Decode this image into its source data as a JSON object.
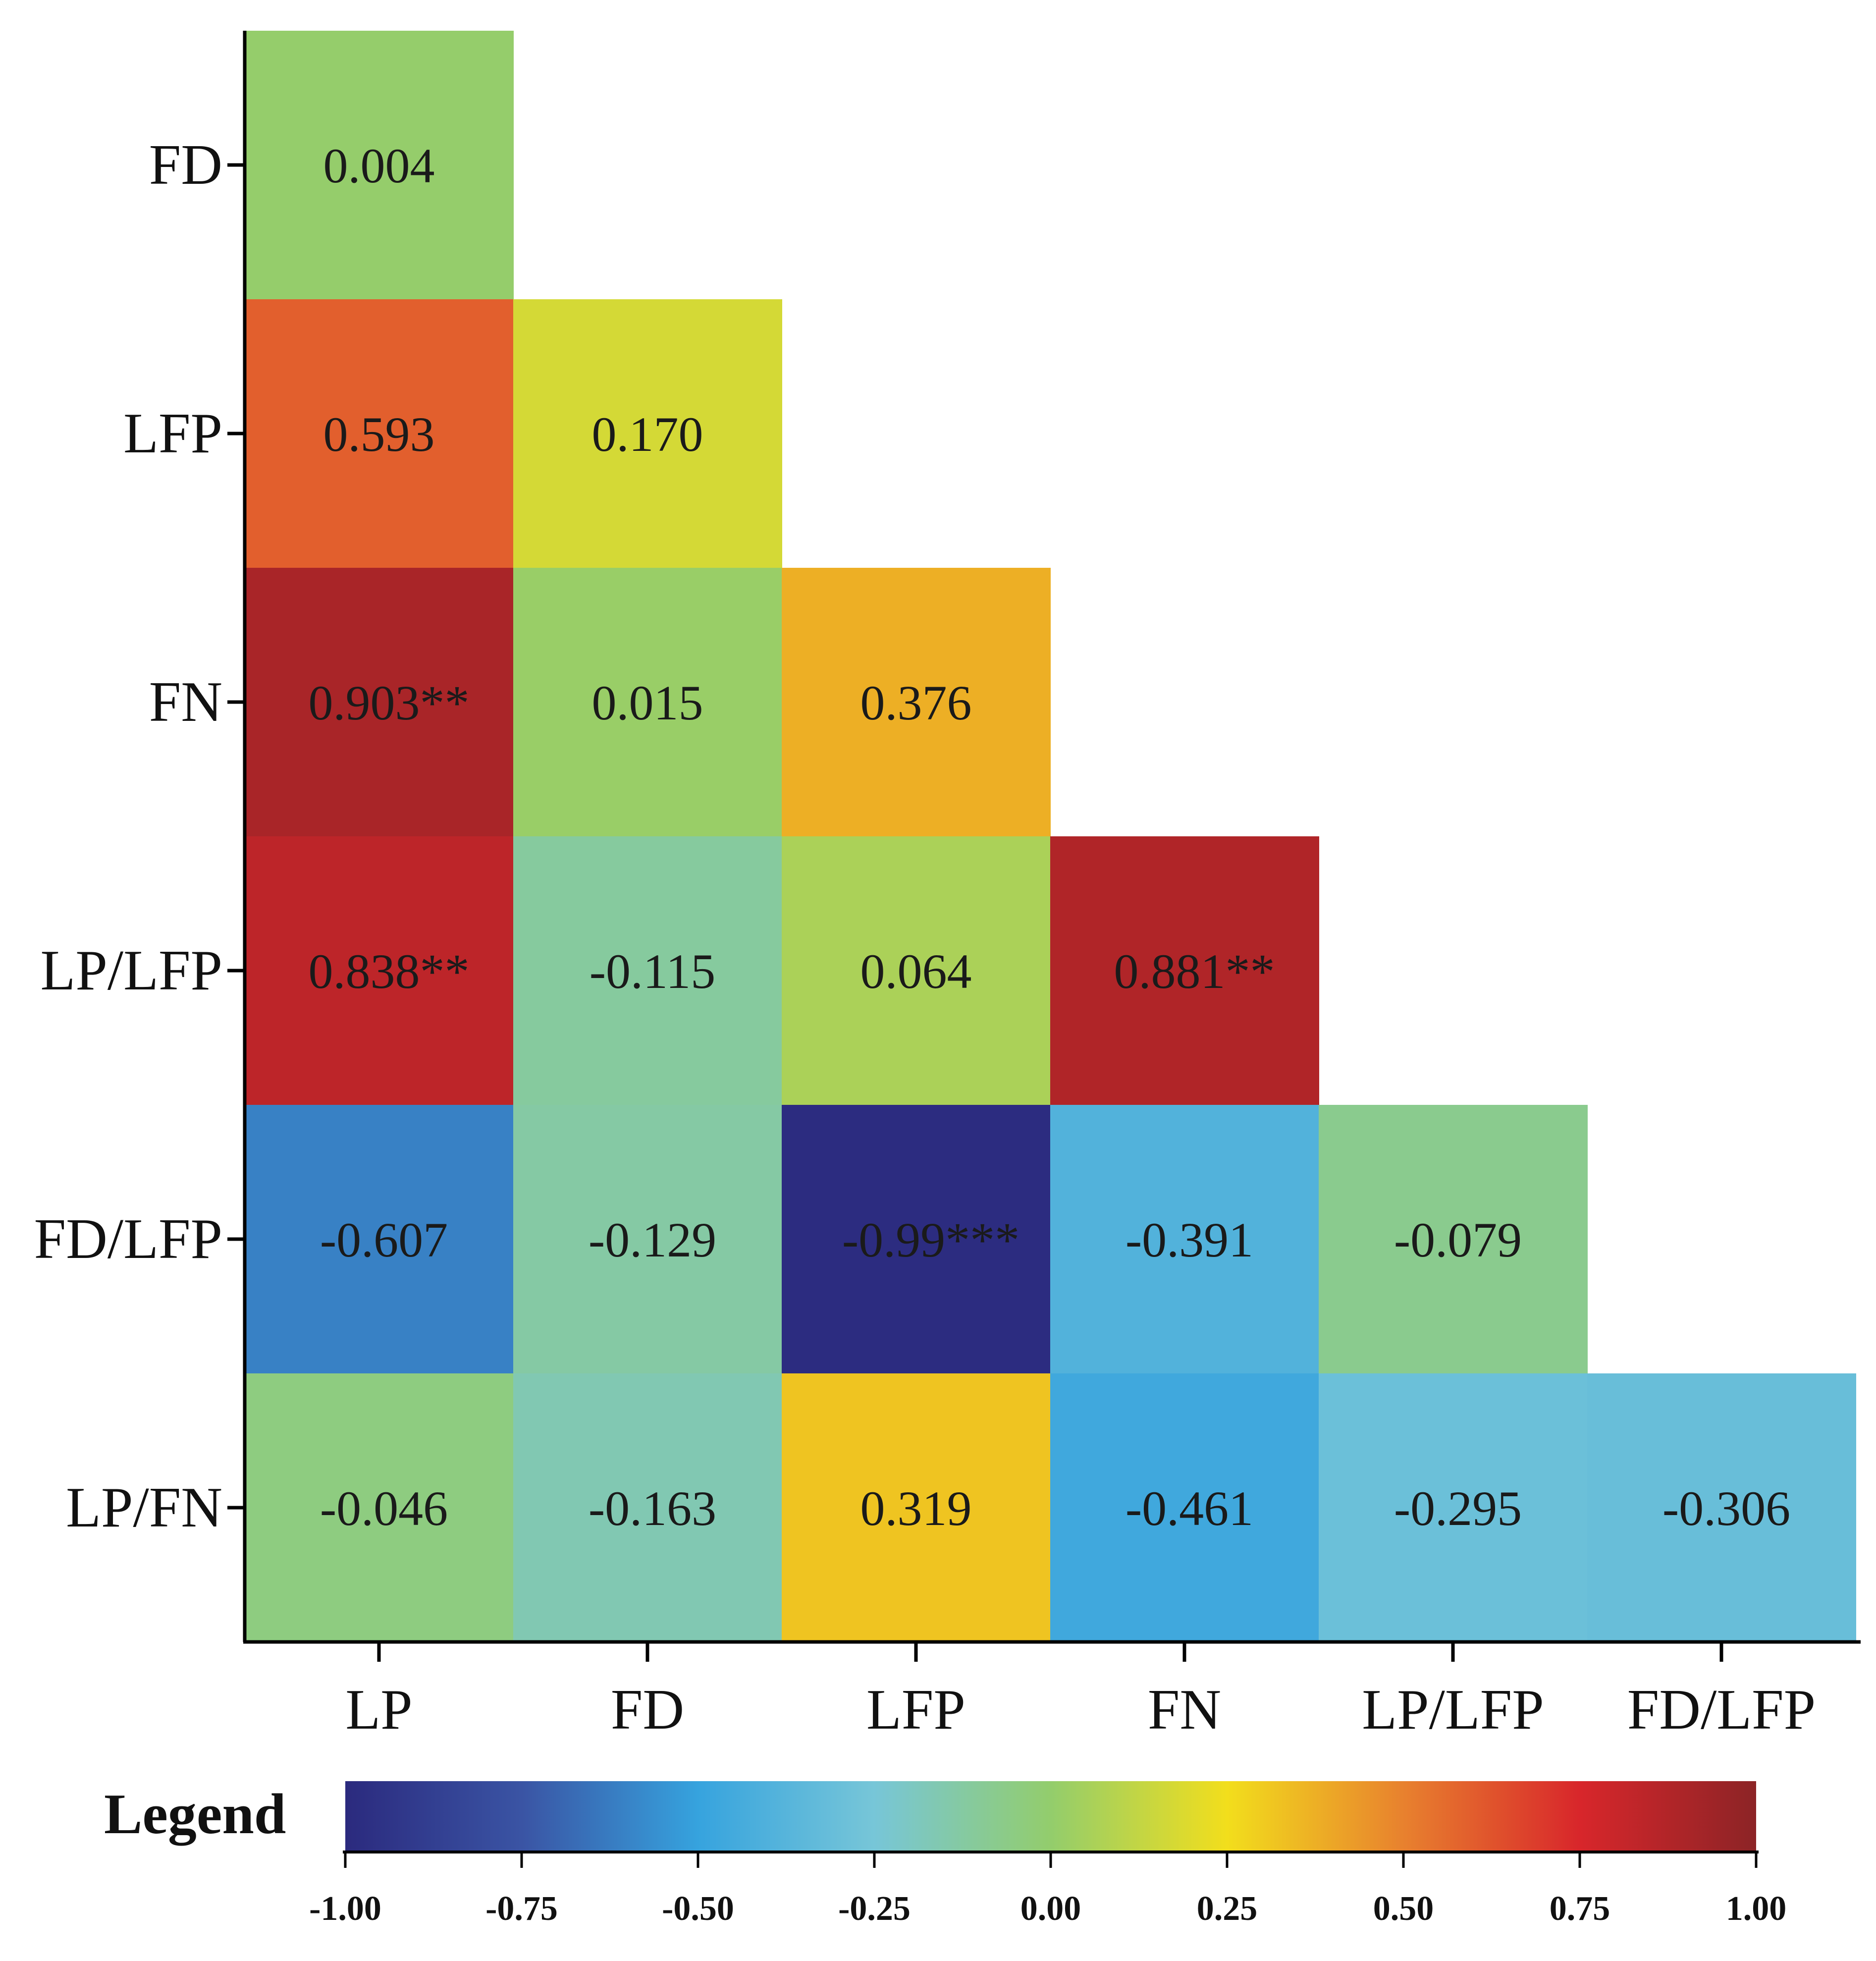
{
  "chart_data": {
    "type": "heatmap",
    "variables": [
      "LP",
      "FD",
      "LFP",
      "FN",
      "LP/LFP",
      "FD/LFP",
      "LP/FN"
    ],
    "x_labels": [
      "LP",
      "FD",
      "LFP",
      "FN",
      "LP/LFP",
      "FD/LFP"
    ],
    "y_labels": [
      "FD",
      "LFP",
      "FN",
      "LP/LFP",
      "FD/LFP",
      "LP/FN"
    ],
    "layout": "lower-triangle",
    "cells": [
      {
        "row": "FD",
        "col": "LP",
        "value": 0.004,
        "label": "0.004"
      },
      {
        "row": "LFP",
        "col": "LP",
        "value": 0.593,
        "label": "0.593"
      },
      {
        "row": "LFP",
        "col": "FD",
        "value": 0.17,
        "label": "0.170"
      },
      {
        "row": "FN",
        "col": "LP",
        "value": 0.903,
        "label": "0.903**"
      },
      {
        "row": "FN",
        "col": "FD",
        "value": 0.015,
        "label": "0.015"
      },
      {
        "row": "FN",
        "col": "LFP",
        "value": 0.376,
        "label": "0.376"
      },
      {
        "row": "LP/LFP",
        "col": "LP",
        "value": 0.838,
        "label": "0.838**"
      },
      {
        "row": "LP/LFP",
        "col": "FD",
        "value": -0.115,
        "label": "-0.115"
      },
      {
        "row": "LP/LFP",
        "col": "LFP",
        "value": 0.064,
        "label": "0.064"
      },
      {
        "row": "LP/LFP",
        "col": "FN",
        "value": 0.881,
        "label": "0.881**"
      },
      {
        "row": "FD/LFP",
        "col": "LP",
        "value": -0.607,
        "label": "-0.607"
      },
      {
        "row": "FD/LFP",
        "col": "FD",
        "value": -0.129,
        "label": "-0.129"
      },
      {
        "row": "FD/LFP",
        "col": "LFP",
        "value": -0.99,
        "label": "-0.99***"
      },
      {
        "row": "FD/LFP",
        "col": "FN",
        "value": -0.391,
        "label": "-0.391"
      },
      {
        "row": "FD/LFP",
        "col": "LP/LFP",
        "value": -0.079,
        "label": "-0.079"
      },
      {
        "row": "LP/FN",
        "col": "LP",
        "value": -0.046,
        "label": "-0.046"
      },
      {
        "row": "LP/FN",
        "col": "FD",
        "value": -0.163,
        "label": "-0.163"
      },
      {
        "row": "LP/FN",
        "col": "LFP",
        "value": 0.319,
        "label": "0.319"
      },
      {
        "row": "LP/FN",
        "col": "FN",
        "value": -0.461,
        "label": "-0.461"
      },
      {
        "row": "LP/FN",
        "col": "LP/LFP",
        "value": -0.295,
        "label": "-0.295"
      },
      {
        "row": "LP/FN",
        "col": "FD/LFP",
        "value": -0.306,
        "label": "-0.306"
      }
    ],
    "colorbar": {
      "title": "Legend",
      "range": [
        -1.0,
        1.0
      ],
      "ticks": [
        -1.0,
        -0.75,
        -0.5,
        -0.25,
        0.0,
        0.25,
        0.5,
        0.75,
        1.0
      ],
      "tick_labels": [
        "-1.00",
        "-0.75",
        "-0.50",
        "-0.25",
        "0.00",
        "0.25",
        "0.50",
        "0.75",
        "1.00"
      ],
      "placement": "bottom",
      "stops": [
        {
          "value": -1.0,
          "color": "#2b2a7e"
        },
        {
          "value": -0.75,
          "color": "#3a54a4"
        },
        {
          "value": -0.5,
          "color": "#36a3de"
        },
        {
          "value": -0.25,
          "color": "#77c6d8"
        },
        {
          "value": 0.0,
          "color": "#93cd6c"
        },
        {
          "value": 0.25,
          "color": "#f2de1c"
        },
        {
          "value": 0.5,
          "color": "#e8812e"
        },
        {
          "value": 0.75,
          "color": "#d8262b"
        },
        {
          "value": 1.0,
          "color": "#8c2426"
        }
      ]
    },
    "grid": false
  }
}
